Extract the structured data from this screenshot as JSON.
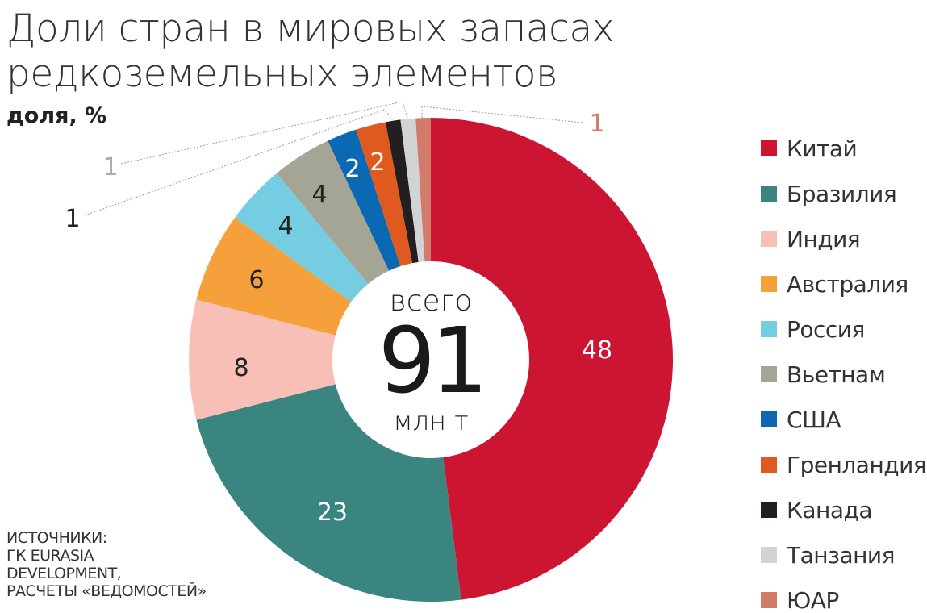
{
  "title": "Доли стран в мировых запасах редкоземельных элементов",
  "subtitle": "доля, %",
  "source": [
    "ИСТОЧНИКИ:",
    "ГК EURASIA",
    "DEVELOPMENT,",
    "РАСЧЕТЫ «ВЕДОМОСТЕЙ»"
  ],
  "center": {
    "top": "всего",
    "value": "91",
    "unit": "млн т"
  },
  "chart_data": {
    "type": "pie",
    "donut": true,
    "title": "Доли стран в мировых запасах редкоземельных элементов",
    "ylabel": "доля, %",
    "legend_position": "right",
    "categories": [
      "Китай",
      "Бразилия",
      "Индия",
      "Австралия",
      "Россия",
      "Вьетнам",
      "США",
      "Гренландия",
      "Канада",
      "Танзания",
      "ЮАР"
    ],
    "values": [
      48,
      23,
      8,
      6,
      4,
      4,
      2,
      2,
      1,
      1,
      1
    ],
    "labels": [
      "48",
      "23",
      "8",
      "6",
      "4",
      "4",
      "2",
      "2",
      "1",
      "1",
      "1"
    ],
    "colors": [
      "#cc1433",
      "#3a857f",
      "#f8bfb7",
      "#f6a03c",
      "#74cde0",
      "#a5a595",
      "#0b68b3",
      "#e05a1f",
      "#231f20",
      "#d2d3d5",
      "#d27b6a"
    ],
    "total": "91 млн т"
  }
}
